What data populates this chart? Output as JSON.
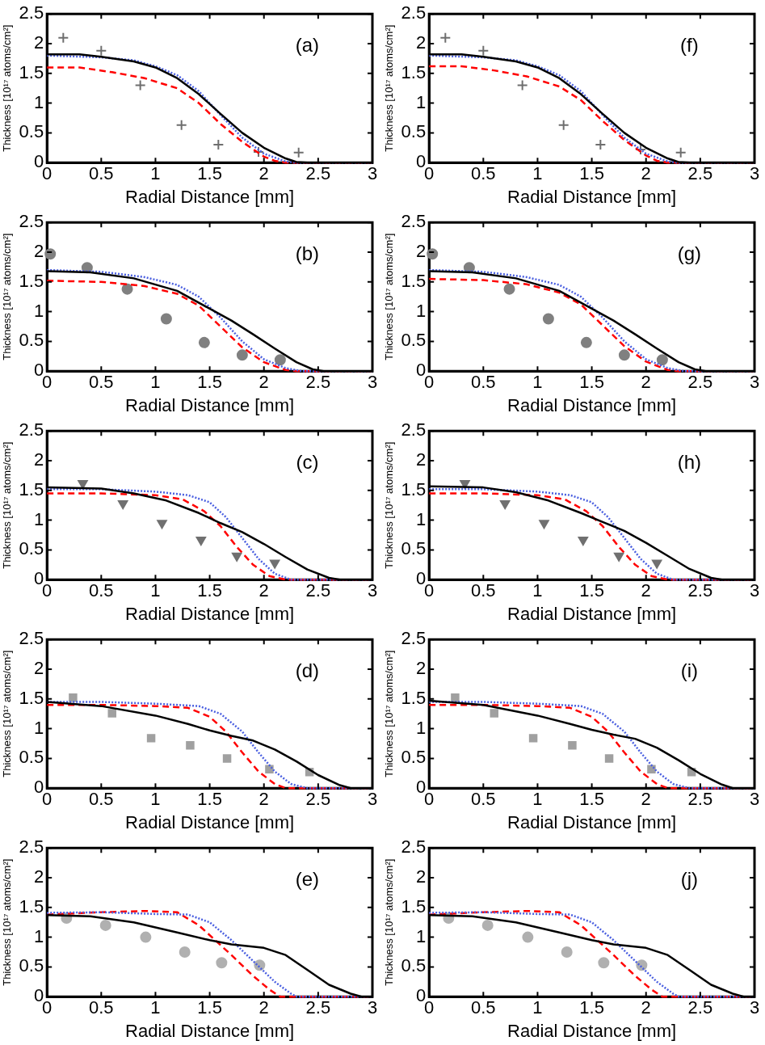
{
  "chart_data": [
    {
      "type": "line",
      "xlabel": "Radial Distance [mm]",
      "ylabel": "Thickness [10¹⁷ atoms/cm²]",
      "annotations": [
        "(a)"
      ],
      "xlim": [
        0,
        3
      ],
      "xticks": [
        0,
        0.5,
        1,
        1.5,
        2,
        2.5,
        3
      ],
      "ylim": [
        0,
        2.5
      ],
      "yticks": [
        0,
        0.5,
        1,
        1.5,
        2,
        2.5
      ],
      "grid": false,
      "legend": false,
      "series": [
        {
          "color": "#000000",
          "line_style": "solid",
          "marker": "none",
          "x": [
            0,
            0.3,
            0.5,
            0.8,
            1,
            1.2,
            1.4,
            1.6,
            1.8,
            2,
            2.2,
            2.3,
            2.4,
            3
          ],
          "values": [
            1.82,
            1.82,
            1.78,
            1.7,
            1.6,
            1.42,
            1.15,
            0.82,
            0.5,
            0.25,
            0.07,
            0.01,
            0,
            0
          ]
        },
        {
          "color": "#4a5fe0",
          "line_style": "dotted",
          "marker": "none",
          "x": [
            0,
            0.5,
            0.8,
            1,
            1.2,
            1.4,
            1.6,
            1.8,
            2,
            2.2,
            2.3,
            3
          ],
          "values": [
            1.8,
            1.77,
            1.72,
            1.62,
            1.47,
            1.2,
            0.8,
            0.42,
            0.15,
            0.02,
            0,
            0
          ]
        },
        {
          "color": "#ff0000",
          "line_style": "dashed",
          "marker": "none",
          "x": [
            0,
            0.3,
            0.6,
            0.9,
            1.2,
            1.4,
            1.6,
            1.8,
            2,
            2.1,
            2.2,
            3
          ],
          "values": [
            1.6,
            1.6,
            1.52,
            1.42,
            1.25,
            1,
            0.65,
            0.35,
            0.1,
            0.03,
            0,
            0
          ]
        },
        {
          "type": "scatter",
          "color": "#6e6e6e",
          "marker": "cross",
          "x": [
            0.15,
            0.5,
            0.86,
            1.24,
            1.58,
            1.95,
            2.32
          ],
          "values": [
            2.1,
            1.88,
            1.3,
            0.63,
            0.3,
            0.18,
            0.17
          ]
        }
      ]
    },
    {
      "type": "line",
      "xlabel": "Radial Distance [mm]",
      "ylabel": "Thickness [10¹⁷ atoms/cm²]",
      "annotations": [
        "(b)"
      ],
      "xlim": [
        0,
        3
      ],
      "xticks": [
        0,
        0.5,
        1,
        1.5,
        2,
        2.5,
        3
      ],
      "ylim": [
        0,
        2.5
      ],
      "yticks": [
        0,
        0.5,
        1,
        1.5,
        2,
        2.5
      ],
      "grid": false,
      "legend": false,
      "series": [
        {
          "color": "#000000",
          "line_style": "solid",
          "marker": "none",
          "x": [
            0,
            0.4,
            0.8,
            1.2,
            1.5,
            1.7,
            1.9,
            2.1,
            2.3,
            2.45,
            2.55,
            3
          ],
          "values": [
            1.68,
            1.66,
            1.56,
            1.35,
            1.05,
            0.85,
            0.62,
            0.38,
            0.15,
            0.03,
            0,
            0
          ]
        },
        {
          "color": "#4a5fe0",
          "line_style": "dotted",
          "marker": "none",
          "x": [
            0,
            0.5,
            0.9,
            1.2,
            1.4,
            1.6,
            1.8,
            2,
            2.2,
            2.35,
            3
          ],
          "values": [
            1.7,
            1.67,
            1.58,
            1.45,
            1.25,
            0.9,
            0.5,
            0.2,
            0.05,
            0,
            0
          ]
        },
        {
          "color": "#ff0000",
          "line_style": "dashed",
          "marker": "none",
          "x": [
            0,
            0.5,
            0.9,
            1.2,
            1.4,
            1.6,
            1.8,
            2,
            2.2,
            2.3,
            3
          ],
          "values": [
            1.52,
            1.5,
            1.43,
            1.3,
            1.1,
            0.75,
            0.4,
            0.15,
            0.02,
            0,
            0
          ]
        },
        {
          "type": "scatter",
          "color": "#808080",
          "marker": "circle",
          "x": [
            0.03,
            0.37,
            0.74,
            1.1,
            1.45,
            1.8,
            2.15
          ],
          "values": [
            1.97,
            1.74,
            1.38,
            0.88,
            0.48,
            0.27,
            0.19
          ]
        }
      ]
    },
    {
      "type": "line",
      "xlabel": "Radial Distance [mm]",
      "ylabel": "Thickness [10¹⁷ atoms/cm²]",
      "annotations": [
        "(c)"
      ],
      "xlim": [
        0,
        3
      ],
      "xticks": [
        0,
        0.5,
        1,
        1.5,
        2,
        2.5,
        3
      ],
      "ylim": [
        0,
        2.5
      ],
      "yticks": [
        0,
        0.5,
        1,
        1.5,
        2,
        2.5
      ],
      "grid": false,
      "legend": false,
      "series": [
        {
          "color": "#000000",
          "line_style": "solid",
          "marker": "none",
          "x": [
            0,
            0.5,
            0.8,
            1.1,
            1.4,
            1.6,
            1.8,
            2,
            2.2,
            2.4,
            2.6,
            2.7,
            3
          ],
          "values": [
            1.55,
            1.53,
            1.45,
            1.33,
            1.12,
            0.95,
            0.8,
            0.6,
            0.38,
            0.17,
            0.03,
            0,
            0
          ]
        },
        {
          "color": "#4a5fe0",
          "line_style": "dotted",
          "marker": "none",
          "x": [
            0,
            0.5,
            1,
            1.3,
            1.5,
            1.65,
            1.8,
            1.95,
            2.1,
            2.25,
            3
          ],
          "values": [
            1.52,
            1.52,
            1.48,
            1.42,
            1.3,
            1.05,
            0.7,
            0.35,
            0.1,
            0,
            0
          ]
        },
        {
          "color": "#ff0000",
          "line_style": "dashed",
          "marker": "none",
          "x": [
            0,
            0.5,
            1,
            1.25,
            1.45,
            1.6,
            1.75,
            1.9,
            2.05,
            2.2,
            3
          ],
          "values": [
            1.45,
            1.45,
            1.42,
            1.35,
            1.15,
            0.9,
            0.55,
            0.25,
            0.06,
            0,
            0
          ]
        },
        {
          "type": "scatter",
          "color": "#707070",
          "marker": "triangle",
          "x": [
            0.33,
            0.7,
            1.06,
            1.42,
            1.75,
            2.1
          ],
          "values": [
            1.62,
            1.28,
            0.95,
            0.67,
            0.4,
            0.28
          ]
        }
      ]
    },
    {
      "type": "line",
      "xlabel": "Radial Distance [mm]",
      "ylabel": "Thickness [10¹⁷ atoms/cm²]",
      "annotations": [
        "(d)"
      ],
      "xlim": [
        0,
        3
      ],
      "xticks": [
        0,
        0.5,
        1,
        1.5,
        2,
        2.5,
        3
      ],
      "ylim": [
        0,
        2.5
      ],
      "yticks": [
        0,
        0.5,
        1,
        1.5,
        2,
        2.5
      ],
      "grid": false,
      "legend": false,
      "series": [
        {
          "color": "#000000",
          "line_style": "solid",
          "marker": "none",
          "x": [
            0,
            0.5,
            1,
            1.3,
            1.5,
            1.7,
            1.9,
            2.1,
            2.3,
            2.5,
            2.7,
            2.8,
            3
          ],
          "values": [
            1.45,
            1.38,
            1.22,
            1.08,
            0.97,
            0.88,
            0.8,
            0.65,
            0.45,
            0.22,
            0.05,
            0,
            0
          ]
        },
        {
          "color": "#4a5fe0",
          "line_style": "dotted",
          "marker": "none",
          "x": [
            0,
            0.5,
            1,
            1.4,
            1.6,
            1.8,
            1.95,
            2.1,
            2.25,
            2.4,
            3
          ],
          "values": [
            1.45,
            1.45,
            1.42,
            1.38,
            1.25,
            0.95,
            0.6,
            0.28,
            0.07,
            0,
            0
          ]
        },
        {
          "color": "#ff0000",
          "line_style": "dashed",
          "marker": "none",
          "x": [
            0,
            0.5,
            1,
            1.3,
            1.5,
            1.65,
            1.8,
            1.95,
            2.1,
            2.2,
            3
          ],
          "values": [
            1.4,
            1.4,
            1.38,
            1.35,
            1.2,
            0.95,
            0.6,
            0.28,
            0.07,
            0,
            0
          ]
        },
        {
          "type": "scatter",
          "color": "#a0a0a0",
          "marker": "square",
          "x": [
            0.24,
            0.6,
            0.96,
            1.32,
            1.66,
            2.05,
            2.42
          ],
          "values": [
            1.52,
            1.26,
            0.84,
            0.72,
            0.5,
            0.32,
            0.27
          ]
        }
      ]
    },
    {
      "type": "line",
      "xlabel": "Radial Distance [mm]",
      "ylabel": "Thickness [10¹⁷ atoms/cm²]",
      "annotations": [
        "(e)"
      ],
      "xlim": [
        0,
        3
      ],
      "xticks": [
        0,
        0.5,
        1,
        1.5,
        2,
        2.5,
        3
      ],
      "ylim": [
        0,
        2.5
      ],
      "yticks": [
        0,
        0.5,
        1,
        1.5,
        2,
        2.5
      ],
      "grid": false,
      "legend": false,
      "series": [
        {
          "color": "#000000",
          "line_style": "solid",
          "marker": "none",
          "x": [
            0,
            0.4,
            0.8,
            1.2,
            1.5,
            1.7,
            2,
            2.2,
            2.4,
            2.6,
            2.8,
            2.9,
            3
          ],
          "values": [
            1.37,
            1.35,
            1.25,
            1.08,
            0.95,
            0.88,
            0.82,
            0.7,
            0.45,
            0.2,
            0.05,
            0,
            0
          ]
        },
        {
          "color": "#4a5fe0",
          "line_style": "dotted",
          "marker": "none",
          "x": [
            0,
            0.5,
            1,
            1.3,
            1.5,
            1.7,
            1.9,
            2.1,
            2.25,
            2.3,
            3
          ],
          "values": [
            1.41,
            1.42,
            1.39,
            1.38,
            1.25,
            0.95,
            0.6,
            0.25,
            0.05,
            0,
            0
          ]
        },
        {
          "color": "#ff0000",
          "line_style": "dashed",
          "marker": "none",
          "x": [
            0,
            0.5,
            0.9,
            1.2,
            1.4,
            1.55,
            1.7,
            1.9,
            2.05,
            2.15,
            3
          ],
          "values": [
            1.38,
            1.42,
            1.44,
            1.42,
            1.2,
            0.95,
            0.7,
            0.35,
            0.12,
            0,
            0
          ]
        },
        {
          "type": "scatter",
          "color": "#b0b0b0",
          "marker": "circle",
          "x": [
            0.18,
            0.54,
            0.91,
            1.27,
            1.61,
            1.96
          ],
          "values": [
            1.32,
            1.2,
            1,
            0.75,
            0.57,
            0.53
          ]
        }
      ]
    },
    {
      "type": "line",
      "xlabel": "Radial Distance [mm]",
      "ylabel": "Thickness [10¹⁷ atoms/cm²]",
      "annotations": [
        "(f)"
      ],
      "xlim": [
        0,
        3
      ],
      "xticks": [
        0,
        0.5,
        1,
        1.5,
        2,
        2.5,
        3
      ],
      "ylim": [
        0,
        2.5
      ],
      "yticks": [
        0,
        0.5,
        1,
        1.5,
        2,
        2.5
      ],
      "grid": false,
      "legend": false,
      "series": [
        {
          "color": "#000000",
          "line_style": "solid",
          "marker": "none",
          "x": [
            0,
            0.3,
            0.5,
            0.8,
            1,
            1.2,
            1.4,
            1.6,
            1.8,
            2,
            2.2,
            2.3,
            2.4,
            3
          ],
          "values": [
            1.82,
            1.82,
            1.78,
            1.7,
            1.6,
            1.42,
            1.15,
            0.82,
            0.5,
            0.25,
            0.07,
            0.01,
            0,
            0
          ]
        },
        {
          "color": "#4a5fe0",
          "line_style": "dotted",
          "marker": "none",
          "x": [
            0,
            0.5,
            0.8,
            1,
            1.2,
            1.4,
            1.6,
            1.8,
            2,
            2.2,
            2.3,
            3
          ],
          "values": [
            1.8,
            1.77,
            1.72,
            1.62,
            1.47,
            1.2,
            0.8,
            0.42,
            0.15,
            0.02,
            0,
            0
          ]
        },
        {
          "color": "#ff0000",
          "line_style": "dashed",
          "marker": "none",
          "x": [
            0,
            0.3,
            0.6,
            0.9,
            1.2,
            1.4,
            1.6,
            1.8,
            2,
            2.1,
            2.2,
            3
          ],
          "values": [
            1.62,
            1.62,
            1.55,
            1.45,
            1.28,
            1.05,
            0.7,
            0.38,
            0.12,
            0.03,
            0,
            0
          ]
        },
        {
          "type": "scatter",
          "color": "#6e6e6e",
          "marker": "cross",
          "x": [
            0.15,
            0.5,
            0.86,
            1.24,
            1.58,
            1.95,
            2.32
          ],
          "values": [
            2.1,
            1.88,
            1.3,
            0.63,
            0.3,
            0.22,
            0.17
          ]
        }
      ]
    },
    {
      "type": "line",
      "xlabel": "Radial Distance [mm]",
      "ylabel": "Thickness [10¹⁷ atoms/cm²]",
      "annotations": [
        "(g)"
      ],
      "xlim": [
        0,
        3
      ],
      "xticks": [
        0,
        0.5,
        1,
        1.5,
        2,
        2.5,
        3
      ],
      "ylim": [
        0,
        2.5
      ],
      "yticks": [
        0,
        0.5,
        1,
        1.5,
        2,
        2.5
      ],
      "grid": false,
      "legend": false,
      "series": [
        {
          "color": "#000000",
          "line_style": "solid",
          "marker": "none",
          "x": [
            0,
            0.4,
            0.8,
            1.2,
            1.5,
            1.7,
            1.9,
            2.1,
            2.3,
            2.45,
            2.55,
            3
          ],
          "values": [
            1.68,
            1.66,
            1.56,
            1.35,
            1.05,
            0.85,
            0.62,
            0.38,
            0.15,
            0.03,
            0,
            0
          ]
        },
        {
          "color": "#4a5fe0",
          "line_style": "dotted",
          "marker": "none",
          "x": [
            0,
            0.5,
            0.9,
            1.2,
            1.4,
            1.6,
            1.8,
            2,
            2.2,
            2.35,
            3
          ],
          "values": [
            1.7,
            1.67,
            1.58,
            1.45,
            1.25,
            0.9,
            0.5,
            0.2,
            0.05,
            0,
            0
          ]
        },
        {
          "color": "#ff0000",
          "line_style": "dashed",
          "marker": "none",
          "x": [
            0,
            0.5,
            0.9,
            1.2,
            1.4,
            1.6,
            1.8,
            2,
            2.2,
            2.3,
            3
          ],
          "values": [
            1.55,
            1.53,
            1.46,
            1.32,
            1.12,
            0.77,
            0.42,
            0.16,
            0.02,
            0,
            0
          ]
        },
        {
          "type": "scatter",
          "color": "#808080",
          "marker": "circle",
          "x": [
            0.03,
            0.37,
            0.74,
            1.1,
            1.45,
            1.8,
            2.15
          ],
          "values": [
            1.97,
            1.74,
            1.38,
            0.88,
            0.48,
            0.27,
            0.19
          ]
        }
      ]
    },
    {
      "type": "line",
      "xlabel": "Radial Distance [mm]",
      "ylabel": "Thickness [10¹⁷ atoms/cm²]",
      "annotations": [
        "(h)"
      ],
      "xlim": [
        0,
        3
      ],
      "xticks": [
        0,
        0.5,
        1,
        1.5,
        2,
        2.5,
        3
      ],
      "ylim": [
        0,
        2.5
      ],
      "yticks": [
        0,
        0.5,
        1,
        1.5,
        2,
        2.5
      ],
      "grid": false,
      "legend": false,
      "series": [
        {
          "color": "#000000",
          "line_style": "solid",
          "marker": "none",
          "x": [
            0,
            0.5,
            0.8,
            1.1,
            1.4,
            1.6,
            1.8,
            2,
            2.2,
            2.4,
            2.6,
            2.7,
            3
          ],
          "values": [
            1.57,
            1.55,
            1.47,
            1.33,
            1.12,
            0.97,
            0.82,
            0.62,
            0.4,
            0.18,
            0.03,
            0,
            0
          ]
        },
        {
          "color": "#4a5fe0",
          "line_style": "dotted",
          "marker": "none",
          "x": [
            0,
            0.5,
            1,
            1.3,
            1.5,
            1.65,
            1.8,
            1.95,
            2.1,
            2.25,
            3
          ],
          "values": [
            1.52,
            1.52,
            1.48,
            1.42,
            1.3,
            1.05,
            0.7,
            0.35,
            0.1,
            0,
            0
          ]
        },
        {
          "color": "#ff0000",
          "line_style": "dashed",
          "marker": "none",
          "x": [
            0,
            0.5,
            1,
            1.25,
            1.45,
            1.6,
            1.75,
            1.9,
            2.05,
            2.2,
            3
          ],
          "values": [
            1.45,
            1.45,
            1.42,
            1.35,
            1.15,
            0.9,
            0.55,
            0.25,
            0.06,
            0,
            0
          ]
        },
        {
          "type": "scatter",
          "color": "#707070",
          "marker": "triangle",
          "x": [
            0.33,
            0.7,
            1.06,
            1.42,
            1.75,
            2.1
          ],
          "values": [
            1.62,
            1.28,
            0.95,
            0.67,
            0.4,
            0.28
          ]
        }
      ]
    },
    {
      "type": "line",
      "xlabel": "Radial Distance [mm]",
      "ylabel": "Thickness [10¹⁷ atoms/cm²]",
      "annotations": [
        "(i)"
      ],
      "xlim": [
        0,
        3
      ],
      "xticks": [
        0,
        0.5,
        1,
        1.5,
        2,
        2.5,
        3
      ],
      "ylim": [
        0,
        2.5
      ],
      "yticks": [
        0,
        0.5,
        1,
        1.5,
        2,
        2.5
      ],
      "grid": false,
      "legend": false,
      "series": [
        {
          "color": "#000000",
          "line_style": "solid",
          "marker": "none",
          "x": [
            0,
            0.5,
            1,
            1.3,
            1.5,
            1.7,
            1.9,
            2.1,
            2.3,
            2.5,
            2.7,
            2.8,
            3
          ],
          "values": [
            1.47,
            1.4,
            1.22,
            1.08,
            0.98,
            0.9,
            0.83,
            0.68,
            0.47,
            0.24,
            0.06,
            0,
            0
          ]
        },
        {
          "color": "#4a5fe0",
          "line_style": "dotted",
          "marker": "none",
          "x": [
            0,
            0.5,
            1,
            1.4,
            1.6,
            1.8,
            1.95,
            2.1,
            2.25,
            2.4,
            3
          ],
          "values": [
            1.45,
            1.45,
            1.42,
            1.38,
            1.25,
            0.95,
            0.6,
            0.28,
            0.07,
            0,
            0
          ]
        },
        {
          "color": "#ff0000",
          "line_style": "dashed",
          "marker": "none",
          "x": [
            0,
            0.5,
            1,
            1.3,
            1.5,
            1.65,
            1.8,
            1.95,
            2.1,
            2.2,
            3
          ],
          "values": [
            1.4,
            1.4,
            1.38,
            1.35,
            1.2,
            0.95,
            0.6,
            0.28,
            0.07,
            0,
            0
          ]
        },
        {
          "type": "scatter",
          "color": "#a0a0a0",
          "marker": "square",
          "x": [
            0.24,
            0.6,
            0.96,
            1.32,
            1.66,
            2.05,
            2.42
          ],
          "values": [
            1.52,
            1.26,
            0.84,
            0.72,
            0.5,
            0.32,
            0.27
          ]
        }
      ]
    },
    {
      "type": "line",
      "xlabel": "Radial Distance [mm]",
      "ylabel": "Thickness [10¹⁷ atoms/cm²]",
      "annotations": [
        "(j)"
      ],
      "xlim": [
        0,
        3
      ],
      "xticks": [
        0,
        0.5,
        1,
        1.5,
        2,
        2.5,
        3
      ],
      "ylim": [
        0,
        2.5
      ],
      "yticks": [
        0,
        0.5,
        1,
        1.5,
        2,
        2.5
      ],
      "grid": false,
      "legend": false,
      "series": [
        {
          "color": "#000000",
          "line_style": "solid",
          "marker": "none",
          "x": [
            0,
            0.4,
            0.8,
            1.2,
            1.5,
            1.7,
            2,
            2.2,
            2.4,
            2.6,
            2.8,
            2.9,
            3
          ],
          "values": [
            1.37,
            1.35,
            1.25,
            1.08,
            0.95,
            0.88,
            0.82,
            0.7,
            0.45,
            0.2,
            0.05,
            0,
            0
          ]
        },
        {
          "color": "#4a5fe0",
          "line_style": "dotted",
          "marker": "none",
          "x": [
            0,
            0.5,
            1,
            1.3,
            1.5,
            1.7,
            1.9,
            2.1,
            2.25,
            2.3,
            3
          ],
          "values": [
            1.41,
            1.42,
            1.39,
            1.38,
            1.25,
            0.95,
            0.6,
            0.25,
            0.05,
            0,
            0
          ]
        },
        {
          "color": "#ff0000",
          "line_style": "dashed",
          "marker": "none",
          "x": [
            0,
            0.5,
            0.9,
            1.2,
            1.4,
            1.55,
            1.7,
            1.9,
            2.05,
            2.15,
            3
          ],
          "values": [
            1.38,
            1.42,
            1.44,
            1.42,
            1.2,
            0.95,
            0.7,
            0.35,
            0.12,
            0,
            0
          ]
        },
        {
          "type": "scatter",
          "color": "#b0b0b0",
          "marker": "circle",
          "x": [
            0.18,
            0.54,
            0.91,
            1.27,
            1.61,
            1.96
          ],
          "values": [
            1.32,
            1.2,
            1,
            0.75,
            0.57,
            0.53
          ]
        }
      ]
    }
  ]
}
